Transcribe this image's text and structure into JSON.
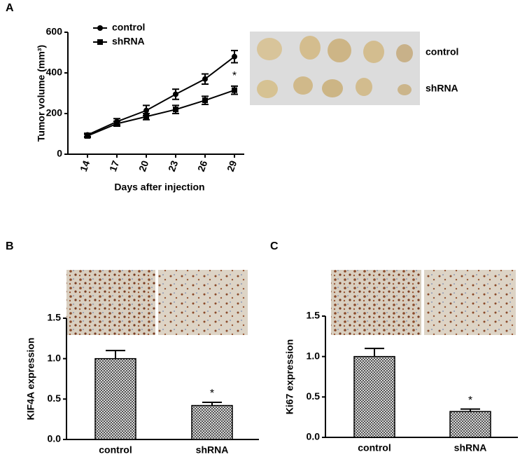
{
  "chart_data": [
    {
      "type": "line",
      "panel_label": "A",
      "x": [
        14,
        17,
        20,
        23,
        26,
        29
      ],
      "xlim": [
        12,
        30
      ],
      "xticks": [
        14,
        17,
        20,
        23,
        26,
        29
      ],
      "ylim": [
        0,
        600
      ],
      "yticks": [
        0,
        200,
        400,
        600
      ],
      "xlabel": "Days after injection",
      "ylabel": "Tumor volume (mm³)",
      "series": [
        {
          "name": "control",
          "color": "#000000",
          "marker": "circle",
          "values": [
            95,
            160,
            215,
            295,
            370,
            480
          ],
          "errors": [
            8,
            15,
            25,
            25,
            25,
            30
          ]
        },
        {
          "name": "shRNA",
          "color": "#000000",
          "marker": "square",
          "values": [
            90,
            150,
            185,
            220,
            265,
            315
          ],
          "errors": [
            8,
            12,
            15,
            20,
            20,
            20
          ]
        }
      ],
      "annotations": [
        "*"
      ],
      "image_labels": [
        "control",
        "shRNA"
      ]
    },
    {
      "type": "bar",
      "panel_label": "B",
      "categories": [
        "control",
        "shRNA"
      ],
      "values": [
        1.0,
        0.42
      ],
      "errors": [
        0.1,
        0.04
      ],
      "ylim": [
        0,
        1.5
      ],
      "yticks": [
        {
          "value": 0,
          "label": "0.0"
        },
        {
          "value": 0.5,
          "label": "0.5"
        },
        {
          "value": 1,
          "label": "1.0"
        },
        {
          "value": 1.5,
          "label": "1.5"
        }
      ],
      "ylabel": "KIF4A expression",
      "annotations": [
        "*"
      ]
    },
    {
      "type": "bar",
      "panel_label": "C",
      "categories": [
        "control",
        "shRNA"
      ],
      "values": [
        1.0,
        0.32
      ],
      "errors": [
        0.1,
        0.03
      ],
      "ylim": [
        0,
        1.5
      ],
      "yticks": [
        {
          "value": 0,
          "label": "0.0"
        },
        {
          "value": 0.5,
          "label": "0.5"
        },
        {
          "value": 1,
          "label": "1.0"
        },
        {
          "value": 1.5,
          "label": "1.5"
        }
      ],
      "ylabel": "Ki67 expression",
      "annotations": [
        "*"
      ]
    }
  ]
}
